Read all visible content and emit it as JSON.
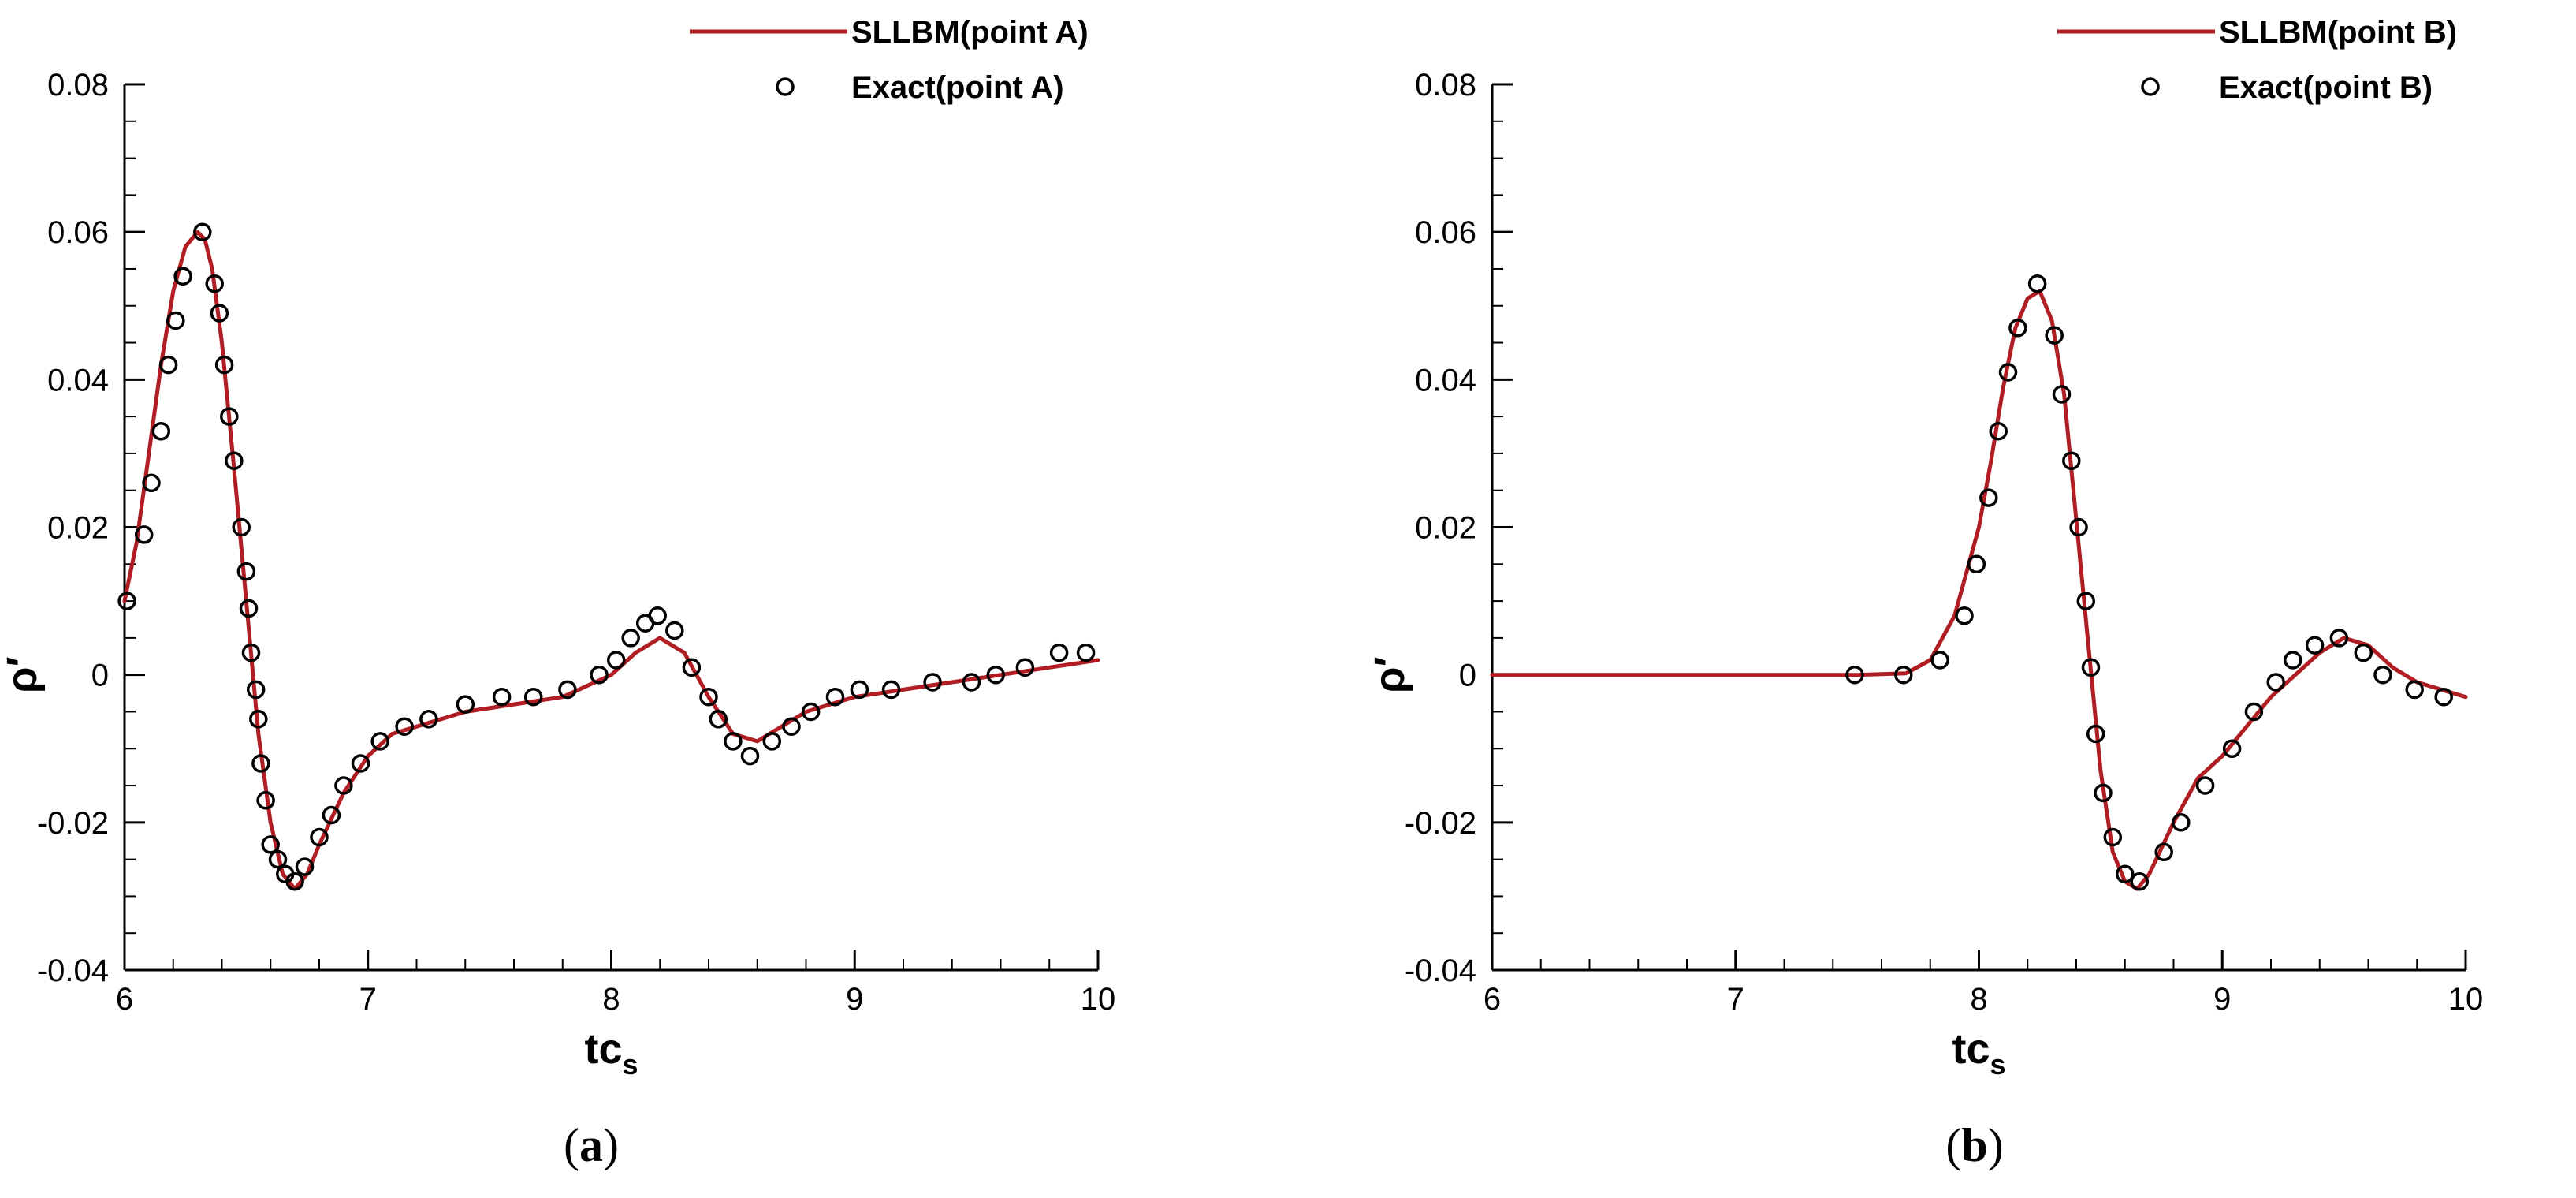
{
  "chart_data": [
    {
      "type": "line",
      "panel_label": "a",
      "xlabel": "tc",
      "xlabel_sub": "s",
      "ylabel": "ρ′",
      "xlim": [
        6,
        10
      ],
      "ylim": [
        -0.04,
        0.08
      ],
      "x_ticks": [
        6,
        7,
        8,
        9,
        10
      ],
      "y_ticks": [
        -0.04,
        -0.02,
        0,
        0.02,
        0.04,
        0.06,
        0.08
      ],
      "x_tick_labels": [
        "6",
        "7",
        "8",
        "9",
        "10"
      ],
      "y_tick_labels": [
        "-0.04",
        "-0.02",
        "0",
        "0.02",
        "0.04",
        "0.06",
        "0.08"
      ],
      "legend_position": "top-right",
      "series": [
        {
          "name": "SLLBM(point A)",
          "style": "line",
          "color": "#b01e23",
          "x": [
            6.0,
            6.05,
            6.1,
            6.15,
            6.2,
            6.25,
            6.3,
            6.33,
            6.36,
            6.4,
            6.45,
            6.5,
            6.55,
            6.6,
            6.65,
            6.7,
            6.75,
            6.8,
            6.9,
            7.0,
            7.1,
            7.2,
            7.4,
            7.6,
            7.8,
            8.0,
            8.1,
            8.2,
            8.3,
            8.4,
            8.5,
            8.6,
            8.7,
            8.8,
            9.0,
            9.2,
            9.4,
            9.6,
            9.8,
            10.0
          ],
          "y": [
            0.01,
            0.018,
            0.03,
            0.042,
            0.052,
            0.058,
            0.06,
            0.059,
            0.055,
            0.045,
            0.028,
            0.01,
            -0.008,
            -0.02,
            -0.027,
            -0.029,
            -0.027,
            -0.023,
            -0.016,
            -0.011,
            -0.008,
            -0.007,
            -0.005,
            -0.004,
            -0.003,
            0.0,
            0.003,
            0.005,
            0.003,
            -0.003,
            -0.008,
            -0.009,
            -0.007,
            -0.005,
            -0.003,
            -0.002,
            -0.001,
            0.0,
            0.001,
            0.002
          ]
        },
        {
          "name": "Exact(point A)",
          "style": "markers",
          "color": "#000000",
          "x": [
            6.01,
            6.08,
            6.11,
            6.15,
            6.18,
            6.21,
            6.24,
            6.32,
            6.37,
            6.39,
            6.41,
            6.43,
            6.45,
            6.48,
            6.5,
            6.51,
            6.52,
            6.54,
            6.55,
            6.56,
            6.58,
            6.6,
            6.63,
            6.66,
            6.7,
            6.74,
            6.8,
            6.85,
            6.9,
            6.97,
            7.05,
            7.15,
            7.25,
            7.4,
            7.55,
            7.68,
            7.82,
            7.95,
            8.02,
            8.08,
            8.14,
            8.19,
            8.26,
            8.33,
            8.4,
            8.44,
            8.5,
            8.57,
            8.66,
            8.74,
            8.82,
            8.92,
            9.02,
            9.15,
            9.32,
            9.48,
            9.58,
            9.7,
            9.84,
            9.95
          ],
          "y": [
            0.01,
            0.019,
            0.026,
            0.033,
            0.042,
            0.048,
            0.054,
            0.06,
            0.053,
            0.049,
            0.042,
            0.035,
            0.029,
            0.02,
            0.014,
            0.009,
            0.003,
            -0.002,
            -0.006,
            -0.012,
            -0.017,
            -0.023,
            -0.025,
            -0.027,
            -0.028,
            -0.026,
            -0.022,
            -0.019,
            -0.015,
            -0.012,
            -0.009,
            -0.007,
            -0.006,
            -0.004,
            -0.003,
            -0.003,
            -0.002,
            0.0,
            0.002,
            0.005,
            0.007,
            0.008,
            0.006,
            0.001,
            -0.003,
            -0.006,
            -0.009,
            -0.011,
            -0.009,
            -0.007,
            -0.005,
            -0.003,
            -0.002,
            -0.002,
            -0.001,
            -0.001,
            0.0,
            0.001,
            0.003,
            0.003
          ]
        }
      ]
    },
    {
      "type": "line",
      "panel_label": "b",
      "xlabel": "tc",
      "xlabel_sub": "s",
      "ylabel": "ρ′",
      "xlim": [
        6,
        10
      ],
      "ylim": [
        -0.04,
        0.08
      ],
      "x_ticks": [
        6,
        7,
        8,
        9,
        10
      ],
      "y_ticks": [
        -0.04,
        -0.02,
        0,
        0.02,
        0.04,
        0.06,
        0.08
      ],
      "x_tick_labels": [
        "6",
        "7",
        "8",
        "9",
        "10"
      ],
      "y_tick_labels": [
        "-0.04",
        "-0.02",
        "0",
        "0.02",
        "0.04",
        "0.06",
        "0.08"
      ],
      "legend_position": "top-right",
      "series": [
        {
          "name": "SLLBM(point B)",
          "style": "line",
          "color": "#b01e23",
          "x": [
            6.0,
            7.0,
            7.5,
            7.7,
            7.8,
            7.9,
            8.0,
            8.05,
            8.1,
            8.15,
            8.2,
            8.25,
            8.3,
            8.35,
            8.4,
            8.45,
            8.5,
            8.55,
            8.6,
            8.65,
            8.7,
            8.8,
            8.9,
            9.0,
            9.1,
            9.2,
            9.3,
            9.4,
            9.5,
            9.6,
            9.7,
            9.8,
            9.9,
            10.0
          ],
          "y": [
            0.0,
            0.0,
            0.0,
            0.0002,
            0.002,
            0.008,
            0.02,
            0.029,
            0.039,
            0.047,
            0.051,
            0.052,
            0.048,
            0.038,
            0.021,
            0.004,
            -0.013,
            -0.024,
            -0.028,
            -0.029,
            -0.027,
            -0.02,
            -0.014,
            -0.011,
            -0.007,
            -0.003,
            0.0,
            0.003,
            0.005,
            0.004,
            0.001,
            -0.001,
            -0.002,
            -0.003
          ]
        },
        {
          "name": "Exact(point B)",
          "style": "markers",
          "color": "#000000",
          "x": [
            7.49,
            7.69,
            7.84,
            7.94,
            7.99,
            8.04,
            8.08,
            8.12,
            8.16,
            8.24,
            8.31,
            8.34,
            8.38,
            8.41,
            8.44,
            8.46,
            8.48,
            8.51,
            8.55,
            8.6,
            8.66,
            8.76,
            8.83,
            8.93,
            9.04,
            9.13,
            9.22,
            9.29,
            9.38,
            9.48,
            9.58,
            9.66,
            9.79,
            9.91
          ],
          "y": [
            0.0,
            0.0,
            0.002,
            0.008,
            0.015,
            0.024,
            0.033,
            0.041,
            0.047,
            0.053,
            0.046,
            0.038,
            0.029,
            0.02,
            0.01,
            0.001,
            -0.008,
            -0.016,
            -0.022,
            -0.027,
            -0.028,
            -0.024,
            -0.02,
            -0.015,
            -0.01,
            -0.005,
            -0.001,
            0.002,
            0.004,
            0.005,
            0.003,
            0.0,
            -0.002,
            -0.003
          ]
        }
      ]
    }
  ]
}
